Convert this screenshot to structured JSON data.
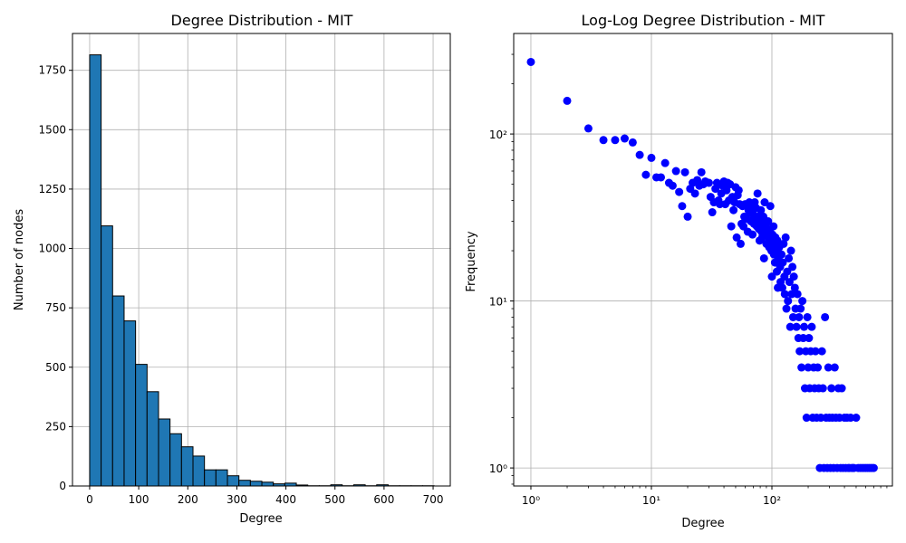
{
  "chart_data": [
    {
      "type": "bar",
      "title": "Degree Distribution - MIT",
      "xlabel": "Degree",
      "ylabel": "Number of nodes",
      "xlim": [
        -35,
        735
      ],
      "ylim": [
        0,
        1905
      ],
      "x_ticks": [
        0,
        100,
        200,
        300,
        400,
        500,
        600,
        700
      ],
      "y_ticks": [
        0,
        250,
        500,
        750,
        1000,
        1250,
        1500,
        1750
      ],
      "grid": true,
      "bar_color": "#1f77b4",
      "bar_edge_color": "#000000",
      "bin_width": 23.4,
      "bins": [
        {
          "x0": 0,
          "value": 1815
        },
        {
          "x0": 23.4,
          "value": 1095
        },
        {
          "x0": 46.8,
          "value": 800
        },
        {
          "x0": 70.2,
          "value": 695
        },
        {
          "x0": 93.6,
          "value": 512
        },
        {
          "x0": 117.0,
          "value": 397
        },
        {
          "x0": 140.4,
          "value": 282
        },
        {
          "x0": 163.8,
          "value": 220
        },
        {
          "x0": 187.2,
          "value": 165
        },
        {
          "x0": 210.6,
          "value": 126
        },
        {
          "x0": 234.0,
          "value": 68
        },
        {
          "x0": 257.4,
          "value": 68
        },
        {
          "x0": 280.8,
          "value": 43
        },
        {
          "x0": 304.2,
          "value": 24
        },
        {
          "x0": 327.6,
          "value": 20
        },
        {
          "x0": 351.0,
          "value": 16
        },
        {
          "x0": 374.4,
          "value": 9
        },
        {
          "x0": 397.8,
          "value": 12
        },
        {
          "x0": 421.2,
          "value": 4
        },
        {
          "x0": 444.6,
          "value": 1
        },
        {
          "x0": 468.0,
          "value": 1
        },
        {
          "x0": 491.4,
          "value": 5
        },
        {
          "x0": 514.8,
          "value": 1
        },
        {
          "x0": 538.2,
          "value": 5
        },
        {
          "x0": 561.6,
          "value": 1
        },
        {
          "x0": 585.0,
          "value": 5
        },
        {
          "x0": 608.4,
          "value": 1
        },
        {
          "x0": 631.8,
          "value": 1
        },
        {
          "x0": 655.2,
          "value": 1
        },
        {
          "x0": 678.6,
          "value": 1
        }
      ]
    },
    {
      "type": "scatter",
      "title": "Log-Log Degree Distribution - MIT",
      "xlabel": "Degree",
      "ylabel": "Frequency",
      "xscale": "log",
      "yscale": "log",
      "xlim": [
        0.72,
        1000
      ],
      "ylim": [
        0.78,
        400
      ],
      "x_ticks": [
        1,
        10,
        100
      ],
      "x_tick_labels": [
        "10⁰",
        "10¹",
        "10²"
      ],
      "y_ticks": [
        1,
        10,
        100
      ],
      "y_tick_labels": [
        "10⁰",
        "10¹",
        "10²"
      ],
      "grid": true,
      "marker_color": "#0000ff",
      "points": [
        [
          1,
          270
        ],
        [
          2,
          158
        ],
        [
          3,
          108
        ],
        [
          4,
          92
        ],
        [
          5,
          92
        ],
        [
          6,
          94
        ],
        [
          7,
          89
        ],
        [
          8,
          75
        ],
        [
          9,
          57
        ],
        [
          10,
          72
        ],
        [
          11,
          55
        ],
        [
          12,
          55
        ],
        [
          13,
          67
        ],
        [
          14,
          51
        ],
        [
          15,
          49
        ],
        [
          16,
          60
        ],
        [
          17,
          45
        ],
        [
          18,
          37
        ],
        [
          19,
          59
        ],
        [
          20,
          32
        ],
        [
          21,
          47
        ],
        [
          22,
          51
        ],
        [
          23,
          44
        ],
        [
          24,
          53
        ],
        [
          25,
          49
        ],
        [
          26,
          59
        ],
        [
          27,
          50
        ],
        [
          28,
          52
        ],
        [
          30,
          51
        ],
        [
          31,
          42
        ],
        [
          32,
          34
        ],
        [
          33,
          39
        ],
        [
          34,
          47
        ],
        [
          35,
          51
        ],
        [
          36,
          40
        ],
        [
          37,
          38
        ],
        [
          38,
          44
        ],
        [
          39,
          49
        ],
        [
          40,
          52
        ],
        [
          41,
          38
        ],
        [
          42,
          46
        ],
        [
          43,
          51
        ],
        [
          44,
          40
        ],
        [
          45,
          50
        ],
        [
          46,
          28
        ],
        [
          47,
          42
        ],
        [
          48,
          35
        ],
        [
          49,
          39
        ],
        [
          50,
          48
        ],
        [
          51,
          24
        ],
        [
          52,
          43
        ],
        [
          53,
          46
        ],
        [
          54,
          38
        ],
        [
          55,
          22
        ],
        [
          56,
          29
        ],
        [
          57,
          37
        ],
        [
          58,
          28
        ],
        [
          59,
          32
        ],
        [
          60,
          38
        ],
        [
          62,
          31
        ],
        [
          63,
          26
        ],
        [
          64,
          35
        ],
        [
          65,
          39
        ],
        [
          66,
          34
        ],
        [
          67,
          30
        ],
        [
          68,
          37
        ],
        [
          69,
          25
        ],
        [
          70,
          33
        ],
        [
          71,
          29
        ],
        [
          72,
          39
        ],
        [
          73,
          31
        ],
        [
          74,
          36
        ],
        [
          75,
          28
        ],
        [
          76,
          44
        ],
        [
          77,
          32
        ],
        [
          78,
          27
        ],
        [
          79,
          23
        ],
        [
          80,
          30
        ],
        [
          81,
          35
        ],
        [
          82,
          26
        ],
        [
          83,
          24
        ],
        [
          84,
          28
        ],
        [
          85,
          32
        ],
        [
          86,
          18
        ],
        [
          87,
          39
        ],
        [
          88,
          25
        ],
        [
          89,
          29
        ],
        [
          90,
          22
        ],
        [
          92,
          27
        ],
        [
          93,
          30
        ],
        [
          94,
          24
        ],
        [
          95,
          21
        ],
        [
          96,
          26
        ],
        [
          97,
          37
        ],
        [
          98,
          23
        ],
        [
          99,
          20
        ],
        [
          100,
          14
        ],
        [
          101,
          25
        ],
        [
          103,
          28
        ],
        [
          104,
          19
        ],
        [
          105,
          22
        ],
        [
          106,
          17
        ],
        [
          107,
          24
        ],
        [
          108,
          20
        ],
        [
          110,
          15
        ],
        [
          111,
          23
        ],
        [
          112,
          12
        ],
        [
          113,
          18
        ],
        [
          115,
          21
        ],
        [
          117,
          16
        ],
        [
          118,
          13
        ],
        [
          120,
          19
        ],
        [
          122,
          12
        ],
        [
          123,
          17
        ],
        [
          125,
          22
        ],
        [
          127,
          14
        ],
        [
          128,
          11
        ],
        [
          130,
          24
        ],
        [
          132,
          9
        ],
        [
          134,
          15
        ],
        [
          136,
          10
        ],
        [
          138,
          18
        ],
        [
          140,
          13
        ],
        [
          142,
          7
        ],
        [
          144,
          20
        ],
        [
          146,
          11
        ],
        [
          148,
          16
        ],
        [
          150,
          8
        ],
        [
          152,
          14
        ],
        [
          155,
          12
        ],
        [
          157,
          9
        ],
        [
          160,
          7
        ],
        [
          163,
          11
        ],
        [
          166,
          6
        ],
        [
          168,
          8
        ],
        [
          170,
          5
        ],
        [
          173,
          9
        ],
        [
          176,
          4
        ],
        [
          179,
          10
        ],
        [
          182,
          6
        ],
        [
          185,
          7
        ],
        [
          188,
          3
        ],
        [
          191,
          5
        ],
        [
          194,
          2
        ],
        [
          197,
          8
        ],
        [
          200,
          4
        ],
        [
          203,
          6
        ],
        [
          206,
          3
        ],
        [
          210,
          5
        ],
        [
          214,
          7
        ],
        [
          218,
          2
        ],
        [
          222,
          4
        ],
        [
          226,
          3
        ],
        [
          230,
          5
        ],
        [
          235,
          2
        ],
        [
          240,
          4
        ],
        [
          245,
          3
        ],
        [
          250,
          1
        ],
        [
          255,
          2
        ],
        [
          260,
          5
        ],
        [
          265,
          3
        ],
        [
          270,
          1
        ],
        [
          276,
          8
        ],
        [
          282,
          2
        ],
        [
          288,
          1
        ],
        [
          294,
          4
        ],
        [
          300,
          2
        ],
        [
          306,
          1
        ],
        [
          312,
          3
        ],
        [
          318,
          2
        ],
        [
          325,
          1
        ],
        [
          332,
          4
        ],
        [
          340,
          2
        ],
        [
          348,
          1
        ],
        [
          356,
          3
        ],
        [
          364,
          2
        ],
        [
          372,
          1
        ],
        [
          380,
          3
        ],
        [
          390,
          1
        ],
        [
          400,
          2
        ],
        [
          410,
          1
        ],
        [
          420,
          2
        ],
        [
          430,
          1
        ],
        [
          440,
          1
        ],
        [
          450,
          2
        ],
        [
          460,
          1
        ],
        [
          470,
          1
        ],
        [
          480,
          1
        ],
        [
          500,
          2
        ],
        [
          520,
          1
        ],
        [
          540,
          1
        ],
        [
          560,
          1
        ],
        [
          580,
          1
        ],
        [
          600,
          1
        ],
        [
          620,
          1
        ],
        [
          640,
          1
        ],
        [
          660,
          1
        ],
        [
          680,
          1
        ],
        [
          700,
          1
        ]
      ]
    }
  ]
}
